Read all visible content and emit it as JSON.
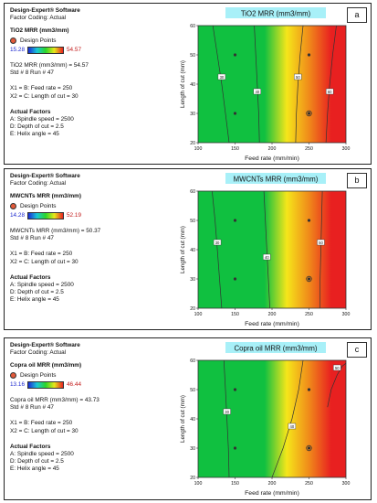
{
  "panels": [
    {
      "label": "a",
      "software": "Design-Expert® Software",
      "coding": "Factor Coding: Actual",
      "response": "TiO2 MRR (mm3/mm)",
      "design_points": "Design Points",
      "range_low": "15.28",
      "range_high": "54.57",
      "prediction": "TiO2 MRR (mm3/mm) = 54.57",
      "std_run": "Std # 8 Run # 47",
      "x1": "X1 = B: Feed rate = 250",
      "x2": "X2 = C: Length of cut = 30",
      "actual_factors": "Actual Factors",
      "factor_a": "A: Spindle speed = 2500",
      "factor_d": "D: Depth of cut = 2.5",
      "factor_e": "E: Helix angle = 45"
    },
    {
      "label": "b",
      "software": "Design-Expert® Software",
      "coding": "Factor Coding: Actual",
      "response": "MWCNTs MRR (mm3/mm)",
      "design_points": "Design Points",
      "range_low": "14.28",
      "range_high": "52.19",
      "prediction": "MWCNTs MRR (mm3/mm) = 50.37",
      "std_run": "Std # 8 Run # 47",
      "x1": "X1 = B: Feed rate = 250",
      "x2": "X2 = C: Length of cut = 30",
      "actual_factors": "Actual Factors",
      "factor_a": "A: Spindle speed = 2500",
      "factor_d": "D: Depth of cut = 2.5",
      "factor_e": "E: Helix angle = 45"
    },
    {
      "label": "c",
      "software": "Design-Expert® Software",
      "coding": "Factor Coding: Actual",
      "response": "Copra oil MRR (mm3/mm)",
      "design_points": "Design Points",
      "range_low": "13.16",
      "range_high": "46.44",
      "prediction": "Copra oil MRR (mm3/mm) = 43.73",
      "std_run": "Std # 8 Run # 47",
      "x1": "X1 = B: Feed rate = 250",
      "x2": "X2 = C: Length of cut = 30",
      "actual_factors": "Actual Factors",
      "factor_a": "A: Spindle speed = 2500",
      "factor_d": "D: Depth of cut = 2.5",
      "factor_e": "E: Helix angle = 45"
    }
  ],
  "colors": {
    "green": "#10c040",
    "yellow": "#f5e61a",
    "orange": "#f08a1a",
    "red": "#e82020",
    "title_bg": "#a8f0f8"
  },
  "chart_data": [
    {
      "type": "contour",
      "title": "TiO2 MRR (mm3/mm)",
      "xlabel": "Feed rate (mm/min)",
      "ylabel": "Length of cut (mm)",
      "xlim": [
        100,
        300
      ],
      "ylim": [
        20,
        60
      ],
      "xticks": [
        "100",
        "150",
        "200",
        "250",
        "300"
      ],
      "yticks": [
        "20",
        "30",
        "40",
        "50",
        "60"
      ],
      "contours": [
        {
          "label": "30",
          "points": [
            [
              142,
              20
            ],
            [
              137,
              30
            ],
            [
              132,
              40
            ],
            [
              126,
              50
            ],
            [
              120,
              60
            ]
          ]
        },
        {
          "label": "40",
          "points": [
            [
              183,
              20
            ],
            [
              182,
              30
            ],
            [
              180,
              40
            ],
            [
              178,
              50
            ],
            [
              176,
              60
            ]
          ]
        },
        {
          "label": "50",
          "points": [
            [
              232,
              20
            ],
            [
              233,
              30
            ],
            [
              235,
              40
            ],
            [
              238,
              50
            ],
            [
              242,
              60
            ]
          ]
        },
        {
          "label": "60",
          "points": [
            [
              273,
              20
            ],
            [
              275,
              30
            ],
            [
              278,
              40
            ],
            [
              282,
              50
            ],
            [
              287,
              60
            ]
          ]
        }
      ],
      "design_points": [
        [
          150,
          30
        ],
        [
          150,
          50
        ],
        [
          250,
          30
        ],
        [
          250,
          50
        ]
      ],
      "highlight_point": [
        250,
        30
      ]
    },
    {
      "type": "contour",
      "title": "MWCNTs MRR (mm3/mm)",
      "xlabel": "Feed rate (mm/min)",
      "ylabel": "Length of cut (mm)",
      "xlim": [
        100,
        300
      ],
      "ylim": [
        20,
        60
      ],
      "xticks": [
        "100",
        "150",
        "200",
        "250",
        "300"
      ],
      "yticks": [
        "20",
        "30",
        "40",
        "50",
        "60"
      ],
      "contours": [
        {
          "label": "30",
          "points": [
            [
              132,
              20
            ],
            [
              129,
              30
            ],
            [
              126,
              40
            ],
            [
              123,
              50
            ],
            [
              119,
              60
            ]
          ]
        },
        {
          "label": "40",
          "points": [
            [
              197,
              20
            ],
            [
              195,
              30
            ],
            [
              193,
              40
            ],
            [
              191,
              50
            ],
            [
              189,
              60
            ]
          ]
        },
        {
          "label": "50",
          "points": [
            [
              265,
              20
            ],
            [
              265,
              30
            ],
            [
              266,
              40
            ],
            [
              267,
              50
            ],
            [
              268,
              60
            ]
          ]
        }
      ],
      "design_points": [
        [
          150,
          30
        ],
        [
          150,
          50
        ],
        [
          250,
          30
        ],
        [
          250,
          50
        ]
      ],
      "highlight_point": [
        250,
        30
      ]
    },
    {
      "type": "contour",
      "title": "Copra oil MRR (mm3/mm)",
      "xlabel": "Feed rate (mm/min)",
      "ylabel": "Length of cut (mm)",
      "xlim": [
        100,
        300
      ],
      "ylim": [
        20,
        60
      ],
      "xticks": [
        "100",
        "150",
        "200",
        "250",
        "300"
      ],
      "yticks": [
        "20",
        "30",
        "40",
        "50",
        "60"
      ],
      "contours": [
        {
          "label": "30",
          "points": [
            [
              142,
              20
            ],
            [
              141,
              30
            ],
            [
              139,
              40
            ],
            [
              137,
              50
            ],
            [
              135,
              60
            ]
          ]
        },
        {
          "label": "40",
          "points": [
            [
              200,
              20
            ],
            [
              215,
              30
            ],
            [
              227,
              40
            ],
            [
              236,
              50
            ],
            [
              242,
              60
            ]
          ]
        },
        {
          "label": "50",
          "points": [
            [
              275,
              44
            ],
            [
              280,
              50
            ],
            [
              288,
              55
            ],
            [
              295,
              58
            ],
            [
              300,
              59
            ]
          ]
        }
      ],
      "design_points": [
        [
          150,
          30
        ],
        [
          150,
          50
        ],
        [
          250,
          30
        ],
        [
          250,
          50
        ]
      ],
      "highlight_point": [
        250,
        30
      ]
    }
  ]
}
